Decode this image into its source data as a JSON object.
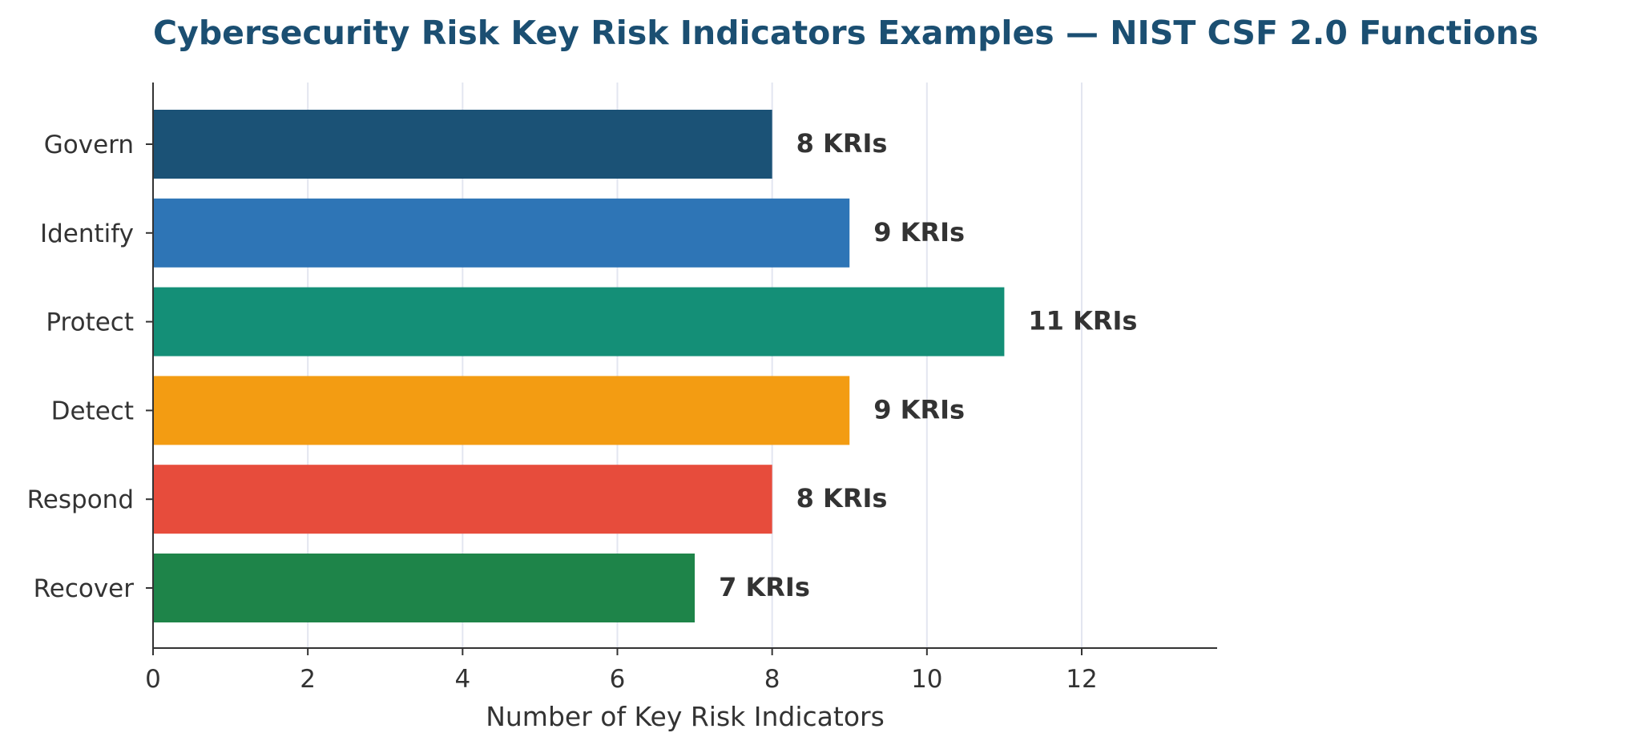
{
  "chart_data": {
    "type": "bar",
    "orientation": "horizontal",
    "title": "Cybersecurity Risk Key Risk Indicators Examples — NIST CSF 2.0 Functions",
    "xlabel": "Number of Key Risk Indicators",
    "ylabel": "",
    "categories": [
      "Govern",
      "Identify",
      "Protect",
      "Detect",
      "Respond",
      "Recover"
    ],
    "values": [
      8,
      9,
      11,
      9,
      8,
      7
    ],
    "value_labels": [
      "8 KRIs",
      "9 KRIs",
      "11 KRIs",
      "9 KRIs",
      "8 KRIs",
      "7 KRIs"
    ],
    "colors": [
      "#1b5276",
      "#2e75b6",
      "#148f77",
      "#f39c12",
      "#e74c3c",
      "#1e8449"
    ],
    "xlim": [
      0,
      13.75
    ],
    "xticks": [
      0,
      2,
      4,
      6,
      8,
      10,
      12
    ],
    "xtick_labels": [
      "0",
      "2",
      "4",
      "6",
      "8",
      "10",
      "12"
    ],
    "grid": "vertical",
    "legend": "none"
  }
}
